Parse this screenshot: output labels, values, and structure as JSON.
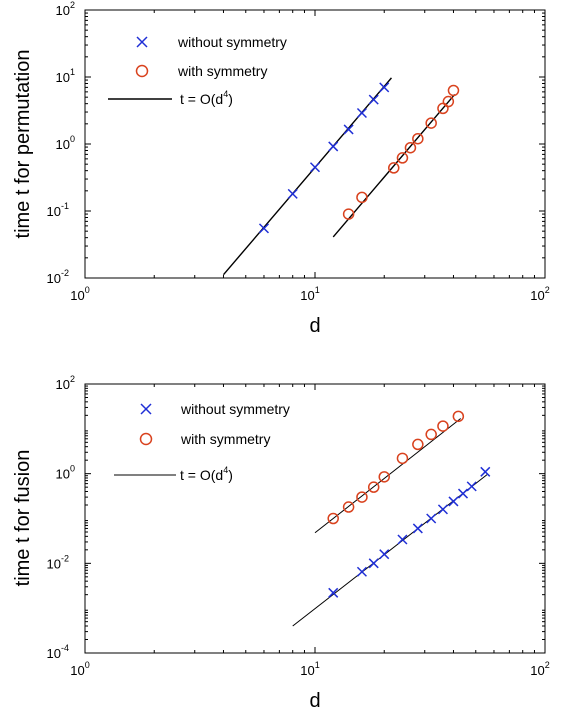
{
  "colors": {
    "without": "#1f2fd6",
    "with": "#d9421e",
    "fit": "#000000"
  },
  "chart_data": [
    {
      "type": "scatter",
      "xscale": "log",
      "yscale": "log",
      "xlabel": "d",
      "ylabel": "time t for permutation",
      "xlim": [
        1,
        100
      ],
      "ylim": [
        0.01,
        100
      ],
      "xticks": [
        {
          "base": "10",
          "exp": "0",
          "value": 1
        },
        {
          "base": "10",
          "exp": "1",
          "value": 10
        },
        {
          "base": "10",
          "exp": "2",
          "value": 100
        }
      ],
      "yticks": [
        {
          "base": "10",
          "exp": "-2",
          "value": 0.01
        },
        {
          "base": "10",
          "exp": "-1",
          "value": 0.1
        },
        {
          "base": "10",
          "exp": "0",
          "value": 1
        },
        {
          "base": "10",
          "exp": "1",
          "value": 10
        },
        {
          "base": "10",
          "exp": "2",
          "value": 100
        }
      ],
      "legend": {
        "position": "top-left",
        "line_label_prefix": "t = O(d",
        "line_label_exp": "4",
        "line_label_suffix": ")"
      },
      "series": [
        {
          "name": "without symmetry",
          "marker": "x",
          "x": [
            6,
            8,
            10,
            12,
            14,
            16,
            18,
            20
          ],
          "y": [
            0.055,
            0.18,
            0.45,
            0.92,
            1.65,
            2.9,
            4.6,
            7.0
          ]
        },
        {
          "name": "with symmetry",
          "marker": "o",
          "x": [
            14,
            16,
            22,
            24,
            26,
            28,
            32,
            36,
            38,
            40
          ],
          "y": [
            0.09,
            0.16,
            0.44,
            0.62,
            0.88,
            1.2,
            2.05,
            3.4,
            4.3,
            6.3
          ]
        }
      ],
      "fits": [
        {
          "series": "without symmetry",
          "x": [
            4,
            21.5
          ],
          "y": [
            0.0112,
            9.7
          ]
        },
        {
          "series": "with symmetry",
          "x": [
            12,
            40.5
          ],
          "y": [
            0.041,
            5.5
          ]
        }
      ]
    },
    {
      "type": "scatter",
      "xscale": "log",
      "yscale": "log",
      "xlabel": "d",
      "ylabel": "time t for fusion",
      "xlim": [
        1,
        100
      ],
      "ylim": [
        0.0001,
        100
      ],
      "xticks": [
        {
          "base": "10",
          "exp": "0",
          "value": 1
        },
        {
          "base": "10",
          "exp": "1",
          "value": 10
        },
        {
          "base": "10",
          "exp": "2",
          "value": 100
        }
      ],
      "yticks": [
        {
          "base": "10",
          "exp": "-4",
          "value": 0.0001
        },
        {
          "base": "10",
          "exp": "-2",
          "value": 0.01
        },
        {
          "base": "10",
          "exp": "0",
          "value": 1
        },
        {
          "base": "10",
          "exp": "2",
          "value": 100
        }
      ],
      "legend": {
        "position": "top-left",
        "line_label_prefix": "t = O(d",
        "line_label_exp": "4",
        "line_label_suffix": ")"
      },
      "series": [
        {
          "name": "without symmetry",
          "marker": "x",
          "x": [
            12,
            16,
            18,
            20,
            24,
            28,
            32,
            36,
            40,
            44,
            48,
            55
          ],
          "y": [
            0.0022,
            0.0065,
            0.01,
            0.016,
            0.034,
            0.06,
            0.1,
            0.16,
            0.24,
            0.36,
            0.52,
            1.1
          ]
        },
        {
          "name": "with symmetry",
          "marker": "o",
          "x": [
            12,
            14,
            16,
            18,
            20,
            24,
            28,
            32,
            36,
            42
          ],
          "y": [
            0.1,
            0.18,
            0.3,
            0.5,
            0.85,
            2.2,
            4.5,
            7.5,
            11.5,
            19.0
          ]
        }
      ],
      "fits": [
        {
          "series": "without symmetry",
          "x": [
            8,
            56
          ],
          "y": [
            0.0004,
            0.95
          ]
        },
        {
          "series": "with symmetry",
          "x": [
            10,
            43
          ],
          "y": [
            0.048,
            17.0
          ]
        }
      ]
    }
  ]
}
